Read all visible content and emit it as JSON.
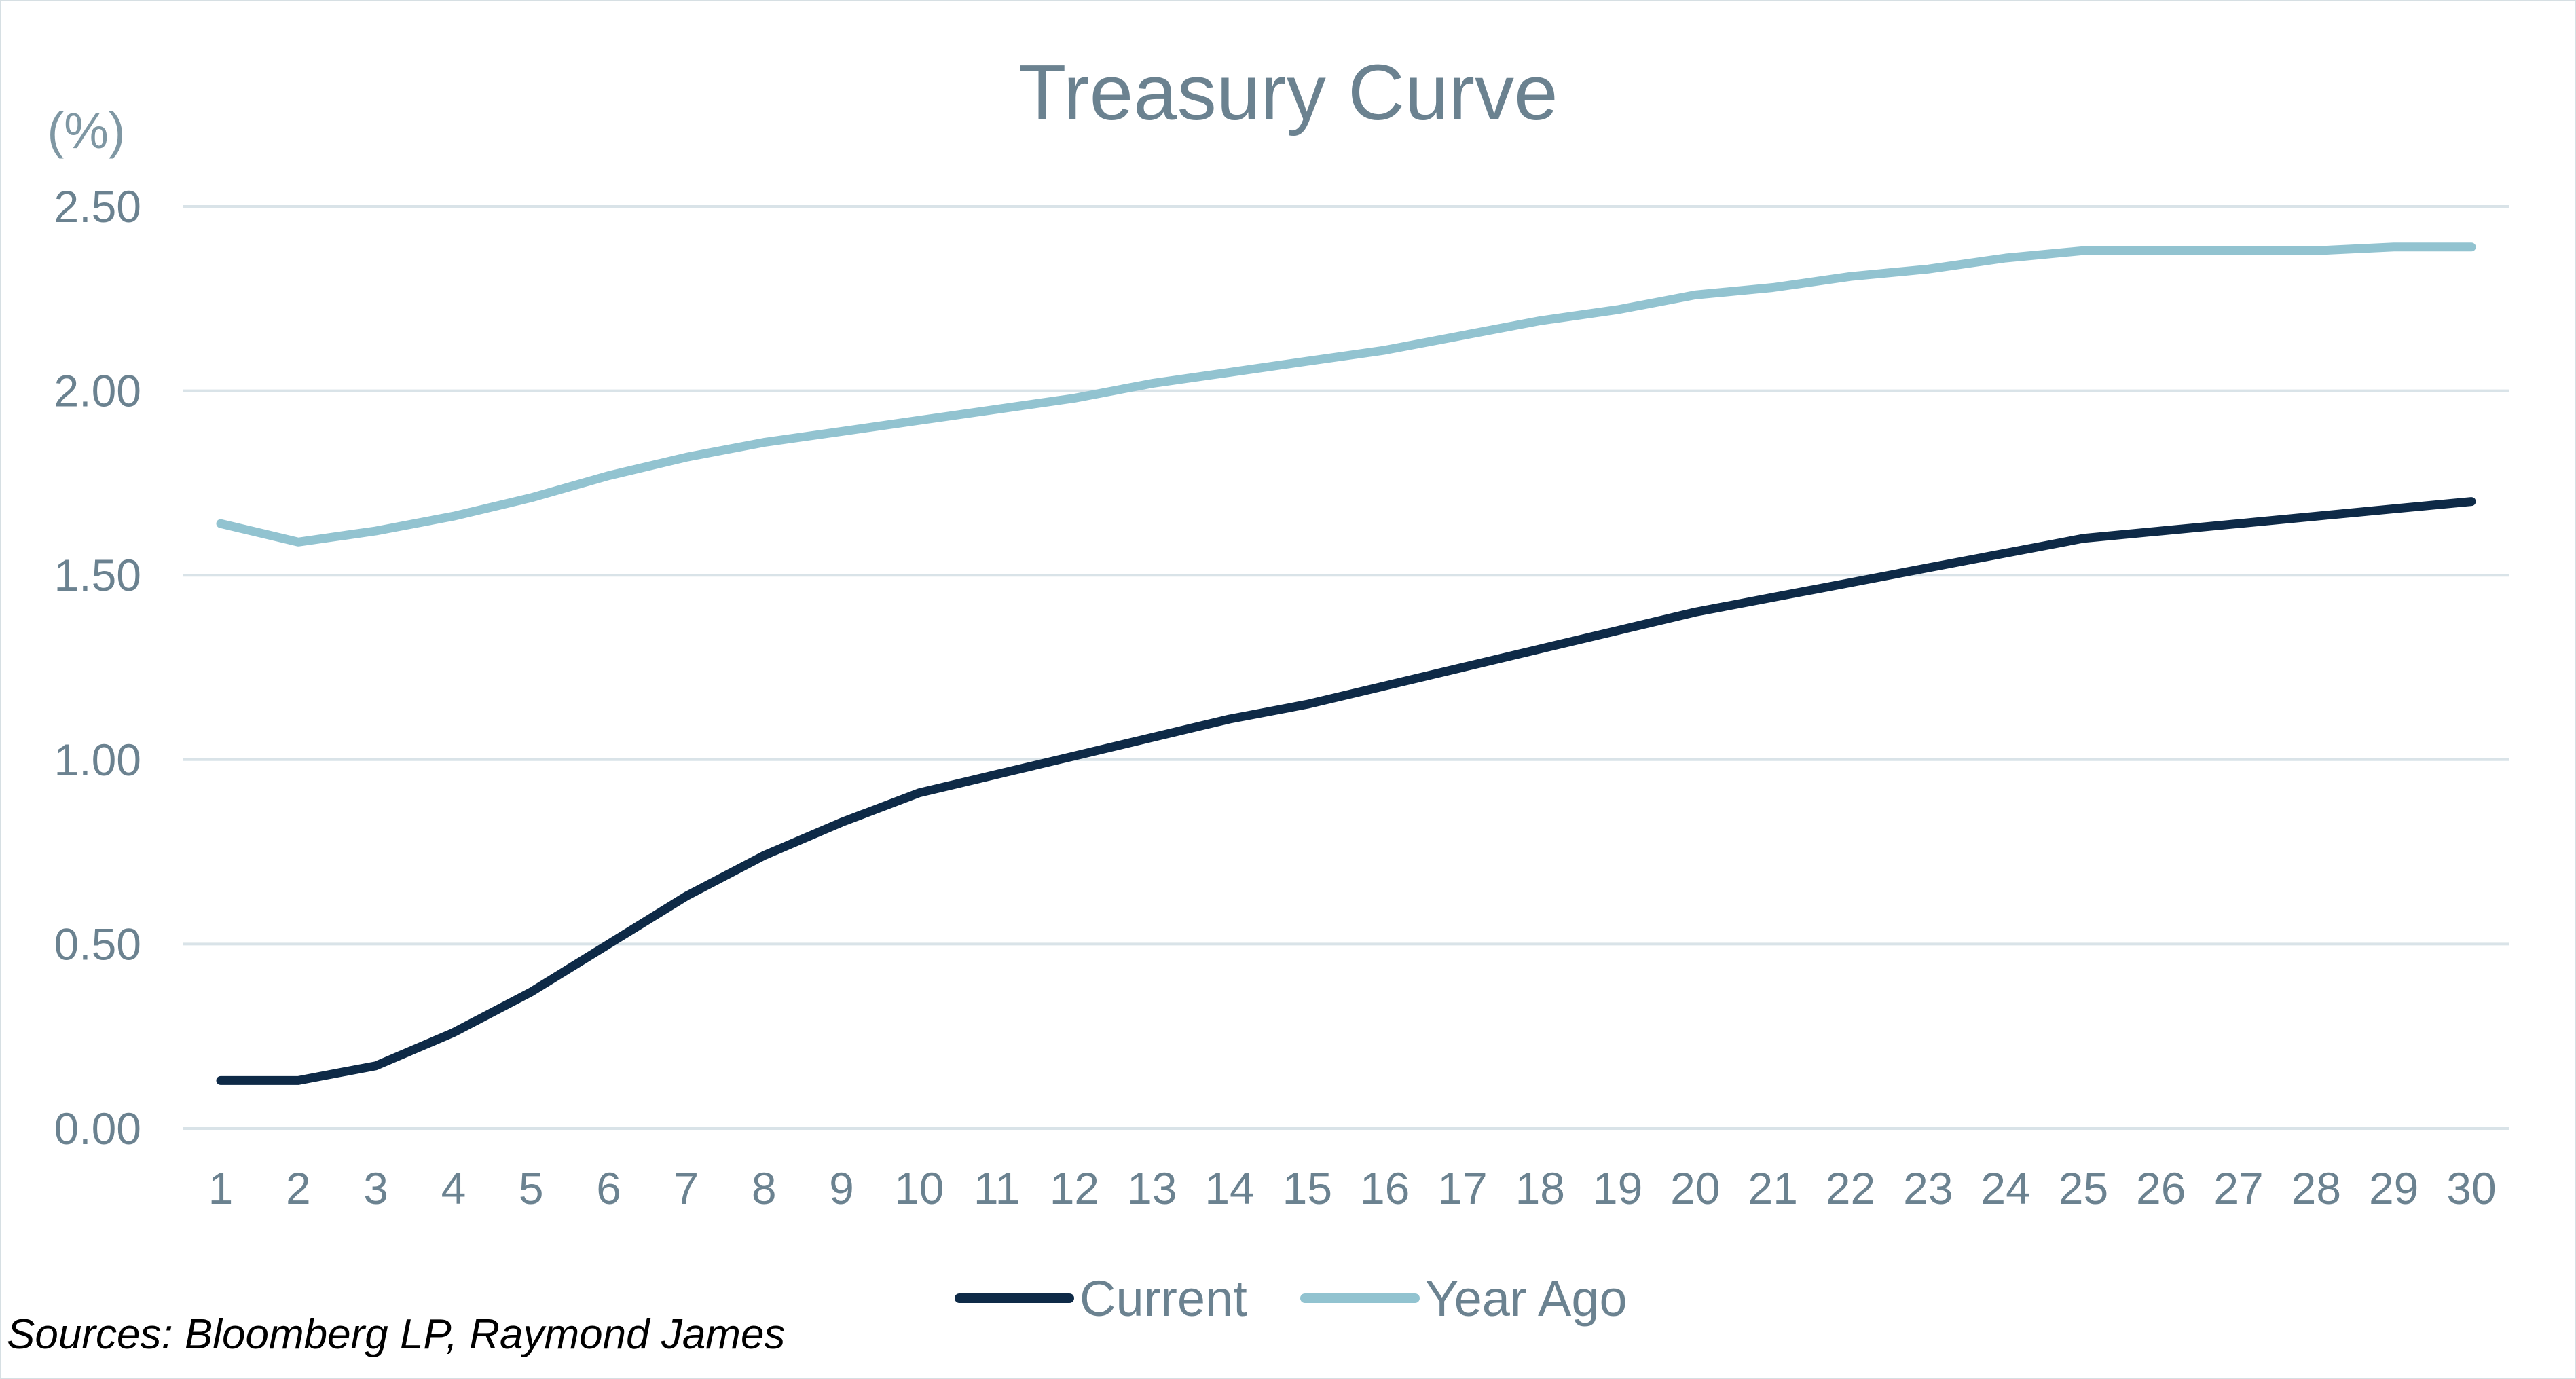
{
  "chart_data": {
    "type": "line",
    "title": "Treasury Curve",
    "ylabel": "(%)",
    "xlabel": "",
    "x": [
      1,
      2,
      3,
      4,
      5,
      6,
      7,
      8,
      9,
      10,
      11,
      12,
      13,
      14,
      15,
      16,
      17,
      18,
      19,
      20,
      21,
      22,
      23,
      24,
      25,
      26,
      27,
      28,
      29,
      30
    ],
    "ylim": [
      0,
      2.5
    ],
    "yticks": [
      "0.00",
      "0.50",
      "1.00",
      "1.50",
      "2.00",
      "2.50"
    ],
    "ytick_values": [
      0,
      0.5,
      1.0,
      1.5,
      2.0,
      2.5
    ],
    "grid": true,
    "legend_position": "bottom",
    "series": [
      {
        "name": "Current",
        "color": "#0e2a47",
        "values": [
          0.13,
          0.13,
          0.17,
          0.26,
          0.37,
          0.5,
          0.63,
          0.74,
          0.83,
          0.91,
          0.96,
          1.01,
          1.06,
          1.11,
          1.15,
          1.2,
          1.25,
          1.3,
          1.35,
          1.4,
          1.44,
          1.48,
          1.52,
          1.56,
          1.6,
          1.62,
          1.64,
          1.66,
          1.68,
          1.7
        ]
      },
      {
        "name": "Year Ago",
        "color": "#92c3d0",
        "values": [
          1.64,
          1.59,
          1.62,
          1.66,
          1.71,
          1.77,
          1.82,
          1.86,
          1.89,
          1.92,
          1.95,
          1.98,
          2.02,
          2.05,
          2.08,
          2.11,
          2.15,
          2.19,
          2.22,
          2.26,
          2.28,
          2.31,
          2.33,
          2.36,
          2.38,
          2.38,
          2.38,
          2.38,
          2.39,
          2.39
        ]
      }
    ]
  },
  "source_note": "Sources: Bloomberg LP, Raymond James"
}
